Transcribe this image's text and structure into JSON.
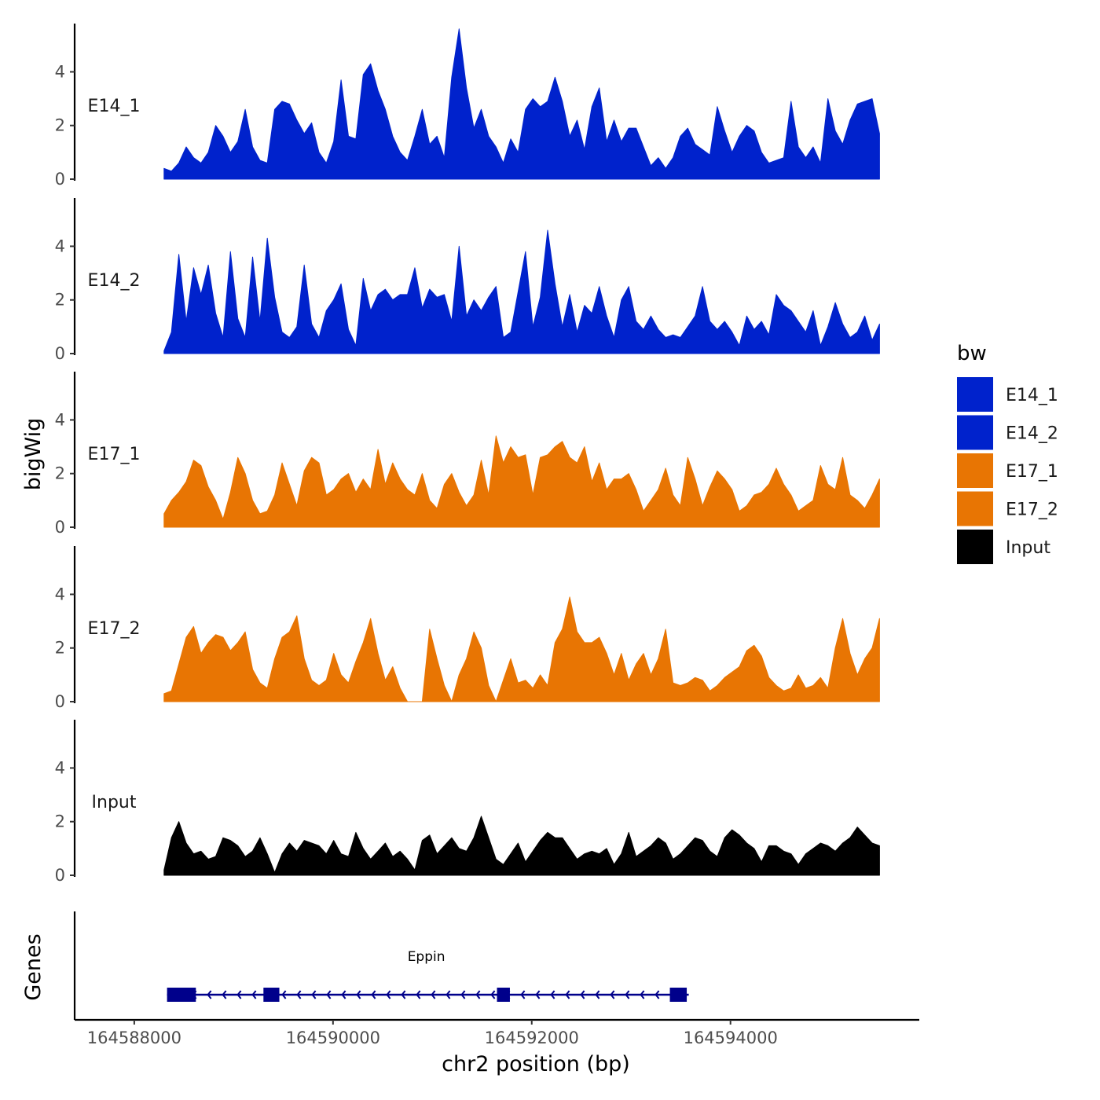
{
  "chart_data": {
    "type": "area",
    "x_range": [
      164588300,
      164595500
    ],
    "x_ticks": [
      164588000,
      164590000,
      164592000,
      164594000
    ],
    "x_tick_labels": [
      "164588000",
      "164590000",
      "164592000",
      "164594000"
    ],
    "xlim": [
      164587400,
      164595900
    ],
    "xlabel": "chr2 position (bp)",
    "ylabel": "bigWig",
    "genes_label": "Genes",
    "ylim": [
      0,
      5.8
    ],
    "y_ticks": [
      0,
      2,
      4
    ],
    "y_tick_labels": [
      "0",
      "2",
      "4"
    ],
    "legend": {
      "title": "bw",
      "entries": [
        {
          "label": "E14_1",
          "color": "#0022cc"
        },
        {
          "label": "E14_2",
          "color": "#0022cc"
        },
        {
          "label": "E17_1",
          "color": "#e87503"
        },
        {
          "label": "E17_2",
          "color": "#e87503"
        },
        {
          "label": "Input",
          "color": "#000000"
        }
      ]
    },
    "series": [
      {
        "name": "E14_1",
        "color": "#0022cc",
        "values": [
          0.4,
          0.3,
          0.6,
          1.2,
          0.8,
          0.6,
          1.0,
          2.0,
          1.6,
          1.0,
          1.4,
          2.6,
          1.2,
          0.7,
          0.6,
          2.6,
          2.9,
          2.8,
          2.2,
          1.7,
          2.1,
          1.0,
          0.6,
          1.4,
          3.7,
          1.6,
          1.5,
          3.9,
          4.3,
          3.3,
          2.6,
          1.6,
          1.0,
          0.7,
          1.6,
          2.6,
          1.3,
          1.6,
          0.8,
          3.8,
          5.6,
          3.4,
          1.9,
          2.6,
          1.6,
          1.2,
          0.6,
          1.5,
          1.0,
          2.6,
          3.0,
          2.7,
          2.9,
          3.8,
          2.9,
          1.6,
          2.2,
          1.1,
          2.7,
          3.4,
          1.4,
          2.2,
          1.4,
          1.9,
          1.9,
          1.2,
          0.5,
          0.8,
          0.4,
          0.8,
          1.6,
          1.9,
          1.3,
          1.1,
          0.9,
          2.7,
          1.8,
          1.0,
          1.6,
          2.0,
          1.8,
          1.0,
          0.6,
          0.7,
          0.8,
          2.9,
          1.2,
          0.8,
          1.2,
          0.6,
          3.0,
          1.8,
          1.3,
          2.2,
          2.8,
          2.9,
          3.0,
          1.7
        ]
      },
      {
        "name": "E14_2",
        "color": "#0022cc",
        "values": [
          0.1,
          0.8,
          3.7,
          1.2,
          3.2,
          2.2,
          3.3,
          1.5,
          0.6,
          3.8,
          1.3,
          0.6,
          3.6,
          1.2,
          4.3,
          2.1,
          0.8,
          0.6,
          1.0,
          3.3,
          1.1,
          0.6,
          1.6,
          2.0,
          2.6,
          0.9,
          0.3,
          2.8,
          1.6,
          2.2,
          2.4,
          2.0,
          2.2,
          2.2,
          3.2,
          1.7,
          2.4,
          2.1,
          2.2,
          1.2,
          4.0,
          1.4,
          2.0,
          1.6,
          2.1,
          2.5,
          0.6,
          0.8,
          2.3,
          3.8,
          1.0,
          2.1,
          4.6,
          2.6,
          1.0,
          2.2,
          0.8,
          1.8,
          1.5,
          2.5,
          1.4,
          0.6,
          2.0,
          2.5,
          1.2,
          0.9,
          1.4,
          0.9,
          0.6,
          0.7,
          0.6,
          1.0,
          1.4,
          2.5,
          1.2,
          0.9,
          1.2,
          0.8,
          0.3,
          1.4,
          0.9,
          1.2,
          0.7,
          2.2,
          1.8,
          1.6,
          1.2,
          0.8,
          1.6,
          0.3,
          1.0,
          1.9,
          1.1,
          0.6,
          0.8,
          1.4,
          0.5,
          1.1
        ]
      },
      {
        "name": "E17_1",
        "color": "#e87503",
        "values": [
          0.5,
          1.0,
          1.3,
          1.7,
          2.5,
          2.3,
          1.5,
          1.0,
          0.3,
          1.3,
          2.6,
          2.0,
          1.0,
          0.5,
          0.6,
          1.2,
          2.4,
          1.6,
          0.8,
          2.1,
          2.6,
          2.4,
          1.2,
          1.4,
          1.8,
          2.0,
          1.3,
          1.8,
          1.4,
          2.9,
          1.6,
          2.4,
          1.8,
          1.4,
          1.2,
          2.0,
          1.0,
          0.7,
          1.6,
          2.0,
          1.3,
          0.8,
          1.2,
          2.5,
          1.2,
          3.4,
          2.4,
          3.0,
          2.6,
          2.7,
          1.2,
          2.6,
          2.7,
          3.0,
          3.2,
          2.6,
          2.4,
          3.0,
          1.7,
          2.4,
          1.4,
          1.8,
          1.8,
          2.0,
          1.4,
          0.6,
          1.0,
          1.4,
          2.2,
          1.2,
          0.8,
          2.6,
          1.8,
          0.8,
          1.5,
          2.1,
          1.8,
          1.4,
          0.6,
          0.8,
          1.2,
          1.3,
          1.6,
          2.2,
          1.6,
          1.2,
          0.6,
          0.8,
          1.0,
          2.3,
          1.6,
          1.4,
          2.6,
          1.2,
          1.0,
          0.7,
          1.2,
          1.8
        ]
      },
      {
        "name": "E17_2",
        "color": "#e87503",
        "values": [
          0.3,
          0.4,
          1.4,
          2.4,
          2.8,
          1.8,
          2.2,
          2.5,
          2.4,
          1.9,
          2.2,
          2.6,
          1.2,
          0.7,
          0.5,
          1.6,
          2.4,
          2.6,
          3.2,
          1.6,
          0.8,
          0.6,
          0.8,
          1.8,
          1.0,
          0.7,
          1.5,
          2.2,
          3.1,
          1.8,
          0.8,
          1.3,
          0.5,
          0.0,
          0.0,
          0.0,
          2.7,
          1.6,
          0.6,
          0.0,
          1.0,
          1.6,
          2.6,
          2.0,
          0.6,
          0.0,
          0.8,
          1.6,
          0.7,
          0.8,
          0.5,
          1.0,
          0.6,
          2.2,
          2.7,
          3.9,
          2.6,
          2.2,
          2.2,
          2.4,
          1.8,
          1.0,
          1.8,
          0.8,
          1.4,
          1.8,
          1.0,
          1.6,
          2.7,
          0.7,
          0.6,
          0.7,
          0.9,
          0.8,
          0.4,
          0.6,
          0.9,
          1.1,
          1.3,
          1.9,
          2.1,
          1.7,
          0.9,
          0.6,
          0.4,
          0.5,
          1.0,
          0.5,
          0.6,
          0.9,
          0.5,
          2.0,
          3.1,
          1.8,
          1.0,
          1.6,
          2.0,
          3.1
        ]
      },
      {
        "name": "Input",
        "color": "#000000",
        "values": [
          0.2,
          1.4,
          2.0,
          1.2,
          0.8,
          0.9,
          0.6,
          0.7,
          1.4,
          1.3,
          1.1,
          0.7,
          0.9,
          1.4,
          0.8,
          0.1,
          0.8,
          1.2,
          0.9,
          1.3,
          1.2,
          1.1,
          0.8,
          1.3,
          0.8,
          0.7,
          1.6,
          1.0,
          0.6,
          0.9,
          1.2,
          0.7,
          0.9,
          0.6,
          0.2,
          1.3,
          1.5,
          0.8,
          1.1,
          1.4,
          1.0,
          0.9,
          1.4,
          2.2,
          1.4,
          0.6,
          0.4,
          0.8,
          1.2,
          0.5,
          0.9,
          1.3,
          1.6,
          1.4,
          1.4,
          1.0,
          0.6,
          0.8,
          0.9,
          0.8,
          1.0,
          0.4,
          0.8,
          1.6,
          0.7,
          0.9,
          1.1,
          1.4,
          1.2,
          0.6,
          0.8,
          1.1,
          1.4,
          1.3,
          0.9,
          0.7,
          1.4,
          1.7,
          1.5,
          1.2,
          1.0,
          0.5,
          1.1,
          1.1,
          0.9,
          0.8,
          0.4,
          0.8,
          1.0,
          1.2,
          1.1,
          0.9,
          1.2,
          1.4,
          1.8,
          1.5,
          1.2,
          1.1
        ]
      }
    ],
    "genes": [
      {
        "name": "Eppin",
        "strand": "-",
        "start": 164588330,
        "end": 164593580,
        "color": "#00008b",
        "exons": [
          [
            164588330,
            164588620
          ],
          [
            164589300,
            164589460
          ],
          [
            164591650,
            164591780
          ],
          [
            164593390,
            164593560
          ]
        ]
      }
    ]
  }
}
